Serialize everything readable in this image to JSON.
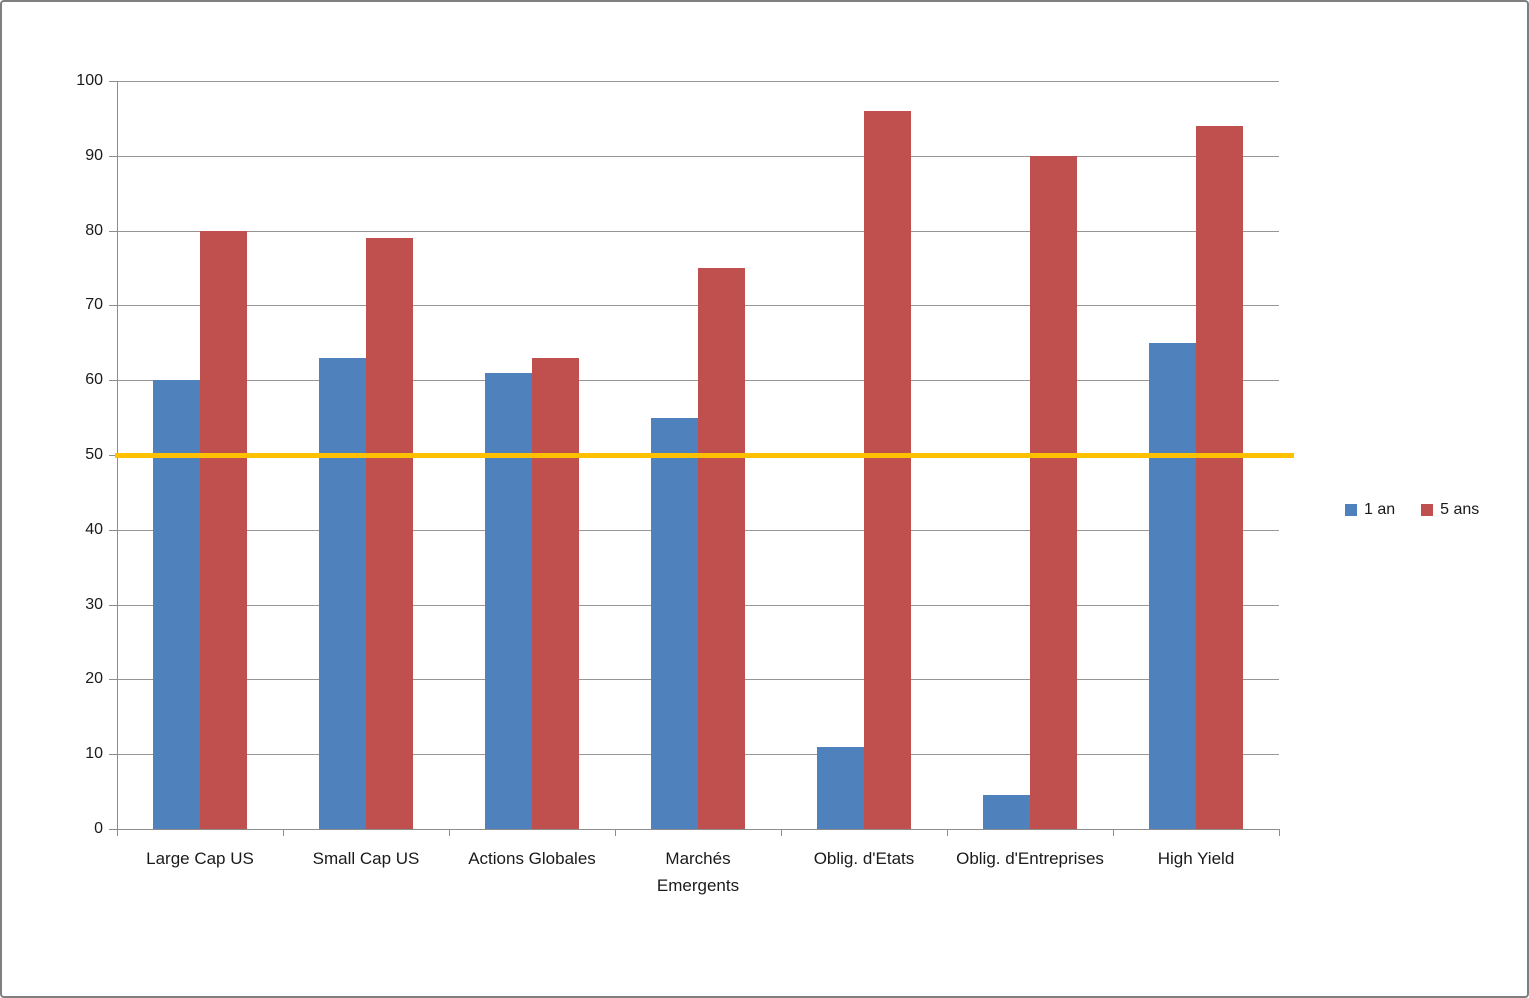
{
  "chart_data": {
    "type": "bar",
    "categories": [
      "Large Cap US",
      "Small Cap US",
      "Actions Globales",
      "Marchés\nEmergents",
      "Oblig. d'Etats",
      "Oblig. d'Entreprises",
      "High Yield"
    ],
    "series": [
      {
        "name": "1 an",
        "color": "#4F81BD",
        "values": [
          60,
          63,
          61,
          55,
          11,
          4.5,
          65
        ]
      },
      {
        "name": "5 ans",
        "color": "#C0504D",
        "values": [
          80,
          79,
          63,
          75,
          96,
          90,
          94
        ]
      }
    ],
    "title": "",
    "xlabel": "",
    "ylabel": "",
    "ylim": [
      0,
      100
    ],
    "y_axis": {
      "min": 0,
      "max": 100,
      "step": 10,
      "tick_labels": [
        "0",
        "10",
        "20",
        "30",
        "40",
        "50",
        "60",
        "70",
        "80",
        "90",
        "100"
      ]
    },
    "reference_line": {
      "value": 50,
      "color": "#FFC000"
    },
    "grid": true,
    "legend_position": "right-middle",
    "legend_entries": [
      "1 an",
      "5 ans"
    ]
  },
  "colors": {
    "series_1": "#4F81BD",
    "series_2": "#C0504D",
    "reference": "#FFC000",
    "gridline": "#969696",
    "axis": "#8C8C8C",
    "frame_border": "#7F7F7F",
    "text": "#1A1A1A"
  }
}
